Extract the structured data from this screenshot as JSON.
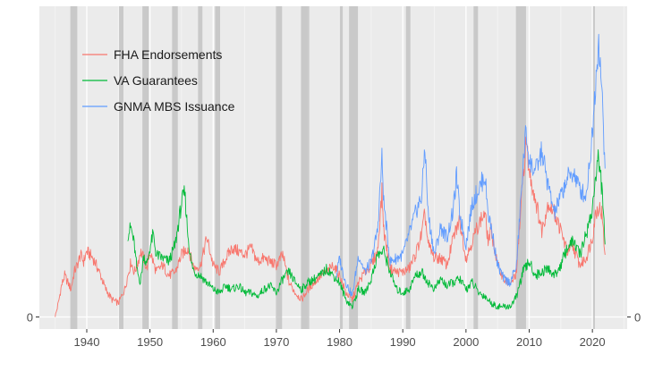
{
  "chart_data": {
    "type": "line",
    "title": "",
    "xlabel": "",
    "ylabel": "",
    "xlim": [
      1932.5,
      2025.5
    ],
    "ylim": [
      -0.35,
      9.0
    ],
    "grid": true,
    "legend_position": "top-left",
    "x_ticks": [
      1940,
      1950,
      1960,
      1970,
      1980,
      1990,
      2000,
      2010,
      2020
    ],
    "x_tick_labels": [
      "1940",
      "1950",
      "1960",
      "1970",
      "1980",
      "1990",
      "2000",
      "2010",
      "2020"
    ],
    "y_ticks": [
      0
    ],
    "y_tick_labels": [
      "0"
    ],
    "y_right_tick_labels": [
      "0"
    ],
    "recessions": [
      [
        1937.4,
        1938.5
      ],
      [
        1945.1,
        1945.8
      ],
      [
        1948.8,
        1949.8
      ],
      [
        1953.5,
        1954.4
      ],
      [
        1957.6,
        1958.3
      ],
      [
        1960.3,
        1961.1
      ],
      [
        1969.9,
        1970.9
      ],
      [
        1973.9,
        1975.2
      ],
      [
        1980.0,
        1980.5
      ],
      [
        1981.5,
        1982.9
      ],
      [
        1990.5,
        1991.2
      ],
      [
        2001.2,
        2001.9
      ],
      [
        2007.9,
        2009.5
      ],
      [
        2020.1,
        2020.4
      ]
    ],
    "series": [
      {
        "name": "FHA Endorsements",
        "color": "#F8766D",
        "x": [
          1935.0,
          1935.5,
          1936.0,
          1936.5,
          1937.0,
          1937.5,
          1938.0,
          1938.5,
          1939.0,
          1939.5,
          1940.0,
          1941.0,
          1942.0,
          1943.0,
          1944.0,
          1945.0,
          1946.0,
          1946.5,
          1947.0,
          1947.5,
          1948.0,
          1948.5,
          1949.0,
          1949.5,
          1950.0,
          1951.0,
          1952.0,
          1953.0,
          1954.0,
          1955.0,
          1956.0,
          1957.0,
          1958.0,
          1959.0,
          1960.0,
          1961.0,
          1962.0,
          1963.0,
          1964.0,
          1965.0,
          1966.0,
          1967.0,
          1968.0,
          1969.0,
          1970.0,
          1971.0,
          1972.0,
          1973.0,
          1974.0,
          1975.0,
          1976.0,
          1977.0,
          1978.0,
          1979.0,
          1980.0,
          1981.0,
          1982.0,
          1983.0,
          1984.0,
          1985.0,
          1986.0,
          1986.7,
          1987.0,
          1988.0,
          1989.0,
          1990.0,
          1991.0,
          1992.0,
          1993.0,
          1993.5,
          1994.0,
          1995.0,
          1996.0,
          1997.0,
          1998.0,
          1999.0,
          2000.0,
          2001.0,
          2002.0,
          2003.0,
          2003.5,
          2004.0,
          2005.0,
          2006.0,
          2007.0,
          2008.0,
          2009.0,
          2009.5,
          2010.0,
          2011.0,
          2012.0,
          2013.0,
          2014.0,
          2015.0,
          2016.0,
          2017.0,
          2018.0,
          2019.0,
          2020.0,
          2020.5,
          2021.0,
          2021.5,
          2022.0
        ],
        "values": [
          0.0,
          0.4,
          0.9,
          1.2,
          1.0,
          0.8,
          1.3,
          1.5,
          1.8,
          1.6,
          1.9,
          1.7,
          1.3,
          0.8,
          0.5,
          0.4,
          0.8,
          1.2,
          1.6,
          1.3,
          1.5,
          1.9,
          1.7,
          1.4,
          1.9,
          1.3,
          1.5,
          1.2,
          1.3,
          1.8,
          2.0,
          1.4,
          1.5,
          2.3,
          1.5,
          1.3,
          1.7,
          2.0,
          1.9,
          1.8,
          2.0,
          1.6,
          1.7,
          1.6,
          1.5,
          1.8,
          1.0,
          0.7,
          0.5,
          0.8,
          1.0,
          1.2,
          1.3,
          1.5,
          1.2,
          0.7,
          0.5,
          1.0,
          1.3,
          1.5,
          1.9,
          3.6,
          2.5,
          1.4,
          1.3,
          1.3,
          1.4,
          1.8,
          2.4,
          3.0,
          2.1,
          1.7,
          1.7,
          1.5,
          2.3,
          2.8,
          1.7,
          2.2,
          2.7,
          3.0,
          2.2,
          2.5,
          1.5,
          1.1,
          0.9,
          1.3,
          4.0,
          5.1,
          4.2,
          3.4,
          2.5,
          3.3,
          3.0,
          2.5,
          1.9,
          2.0,
          1.5,
          1.7,
          2.3,
          3.0,
          3.2,
          3.0,
          1.8
        ]
      },
      {
        "name": "VA Guarantees",
        "color": "#00BA38",
        "x": [
          1946.5,
          1947.0,
          1947.5,
          1948.0,
          1948.5,
          1949.0,
          1949.5,
          1950.0,
          1950.5,
          1951.0,
          1952.0,
          1953.0,
          1954.0,
          1954.5,
          1955.0,
          1955.5,
          1956.0,
          1956.5,
          1957.0,
          1958.0,
          1959.0,
          1960.0,
          1961.0,
          1962.0,
          1963.0,
          1964.0,
          1965.0,
          1966.0,
          1967.0,
          1968.0,
          1969.0,
          1970.0,
          1971.0,
          1972.0,
          1973.0,
          1974.0,
          1975.0,
          1976.0,
          1977.0,
          1978.0,
          1979.0,
          1980.0,
          1981.0,
          1982.0,
          1983.0,
          1984.0,
          1985.0,
          1986.0,
          1987.0,
          1988.0,
          1989.0,
          1990.0,
          1991.0,
          1992.0,
          1993.0,
          1994.0,
          1995.0,
          1996.0,
          1997.0,
          1998.0,
          1999.0,
          2000.0,
          2001.0,
          2002.0,
          2003.0,
          2004.0,
          2005.0,
          2006.0,
          2007.0,
          2008.0,
          2009.0,
          2010.0,
          2011.0,
          2012.0,
          2013.0,
          2014.0,
          2015.0,
          2016.0,
          2017.0,
          2018.0,
          2019.0,
          2020.0,
          2020.5,
          2021.0,
          2021.5,
          2022.0
        ],
        "values": [
          2.4,
          2.6,
          2.1,
          1.3,
          1.0,
          1.8,
          1.5,
          2.0,
          2.4,
          1.8,
          1.7,
          1.6,
          2.1,
          2.7,
          3.3,
          3.6,
          2.4,
          1.6,
          1.3,
          1.2,
          1.0,
          0.8,
          0.7,
          0.9,
          0.8,
          0.9,
          0.7,
          0.7,
          0.6,
          0.8,
          0.9,
          0.7,
          1.1,
          1.3,
          1.0,
          0.8,
          1.0,
          1.1,
          1.2,
          1.4,
          1.2,
          1.0,
          0.5,
          0.3,
          0.8,
          0.7,
          1.1,
          1.8,
          1.9,
          1.3,
          0.8,
          0.7,
          0.8,
          1.2,
          1.3,
          1.0,
          0.8,
          1.1,
          0.9,
          1.0,
          1.1,
          0.8,
          1.0,
          0.7,
          0.6,
          0.4,
          0.3,
          0.3,
          0.3,
          0.6,
          1.3,
          1.6,
          1.2,
          1.3,
          1.4,
          1.2,
          1.5,
          2.0,
          2.2,
          1.8,
          2.4,
          3.1,
          4.1,
          4.6,
          3.7,
          2.1
        ]
      },
      {
        "name": "GNMA MBS Issuance",
        "color": "#619CFF",
        "x": [
          1979.5,
          1980.0,
          1980.5,
          1981.0,
          1982.0,
          1983.0,
          1984.0,
          1985.0,
          1986.0,
          1986.7,
          1987.0,
          1988.0,
          1989.0,
          1990.0,
          1991.0,
          1992.0,
          1993.0,
          1993.5,
          1994.0,
          1995.0,
          1996.0,
          1997.0,
          1998.0,
          1998.5,
          1999.0,
          2000.0,
          2001.0,
          2002.0,
          2003.0,
          2003.5,
          2004.0,
          2005.0,
          2006.0,
          2007.0,
          2008.0,
          2009.0,
          2009.5,
          2010.0,
          2011.0,
          2012.0,
          2013.0,
          2014.0,
          2015.0,
          2016.0,
          2017.0,
          2018.0,
          2019.0,
          2020.0,
          2020.5,
          2021.0,
          2021.5,
          2022.0
        ],
        "values": [
          1.2,
          1.7,
          1.3,
          1.0,
          0.6,
          1.8,
          1.3,
          1.6,
          2.5,
          4.6,
          3.3,
          1.6,
          1.7,
          1.8,
          2.4,
          3.0,
          3.5,
          5.0,
          3.0,
          1.8,
          2.6,
          2.3,
          3.1,
          4.1,
          3.0,
          2.1,
          3.3,
          3.7,
          4.1,
          3.0,
          2.6,
          1.5,
          1.1,
          1.0,
          1.5,
          4.3,
          5.4,
          4.5,
          4.2,
          4.8,
          3.8,
          3.0,
          3.5,
          4.0,
          4.2,
          3.7,
          3.5,
          5.3,
          6.8,
          8.1,
          6.5,
          4.3
        ]
      }
    ]
  }
}
